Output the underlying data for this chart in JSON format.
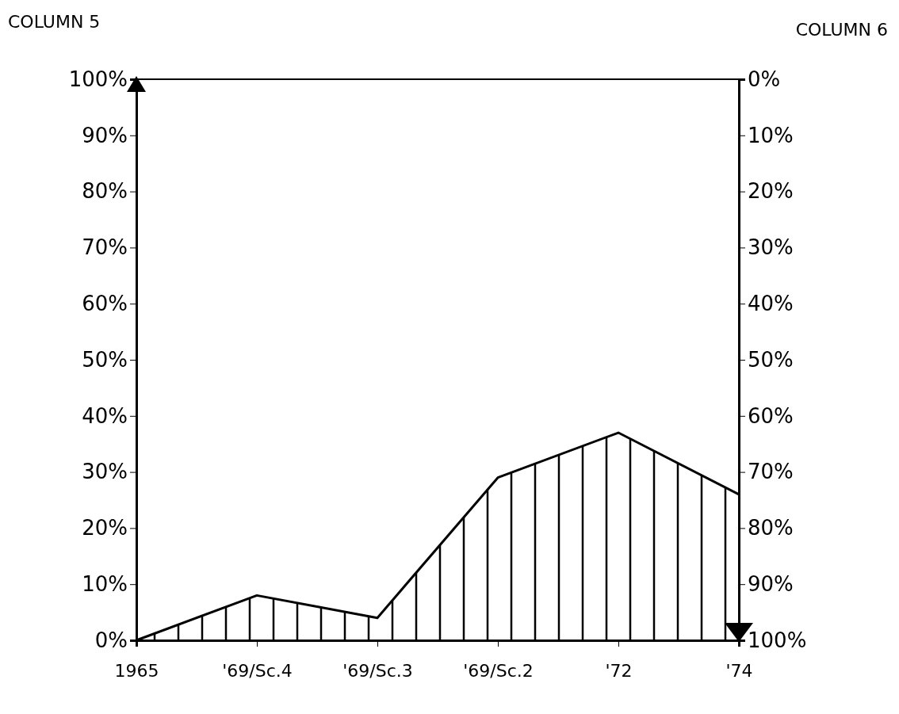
{
  "chart_data": {
    "type": "area",
    "ylabel": "COLUMN 5",
    "y2label": "COLUMN 6",
    "categories": [
      "1965",
      "'69/Sc.4",
      "'69/Sc.3",
      "'69/Sc.2",
      "'72",
      "'74"
    ],
    "series": [
      {
        "color": "#000000",
        "values": [
          0,
          8,
          4,
          29,
          37,
          26
        ]
      }
    ],
    "ylim": [
      0,
      100
    ],
    "yticks": [
      {
        "value": 0,
        "label": "0%"
      },
      {
        "value": 10,
        "label": "10%"
      },
      {
        "value": 20,
        "label": "20%"
      },
      {
        "value": 30,
        "label": "30%"
      },
      {
        "value": 40,
        "label": "40%"
      },
      {
        "value": 50,
        "label": "50%"
      },
      {
        "value": 60,
        "label": "60%"
      },
      {
        "value": 70,
        "label": "70%"
      },
      {
        "value": 80,
        "label": "80%"
      },
      {
        "value": 90,
        "label": "90%"
      },
      {
        "value": 100,
        "label": "100%"
      }
    ],
    "y2lim": [
      100,
      0
    ],
    "y2ticks": [
      {
        "value": 0,
        "label": "0%"
      },
      {
        "value": 10,
        "label": "10%"
      },
      {
        "value": 20,
        "label": "20%"
      },
      {
        "value": 30,
        "label": "30%"
      },
      {
        "value": 40,
        "label": "40%"
      },
      {
        "value": 50,
        "label": "50%"
      },
      {
        "value": 60,
        "label": "60%"
      },
      {
        "value": 70,
        "label": "70%"
      },
      {
        "value": 80,
        "label": "80%"
      },
      {
        "value": 90,
        "label": "90%"
      },
      {
        "value": 100,
        "label": "100%"
      }
    ],
    "grid": false
  }
}
